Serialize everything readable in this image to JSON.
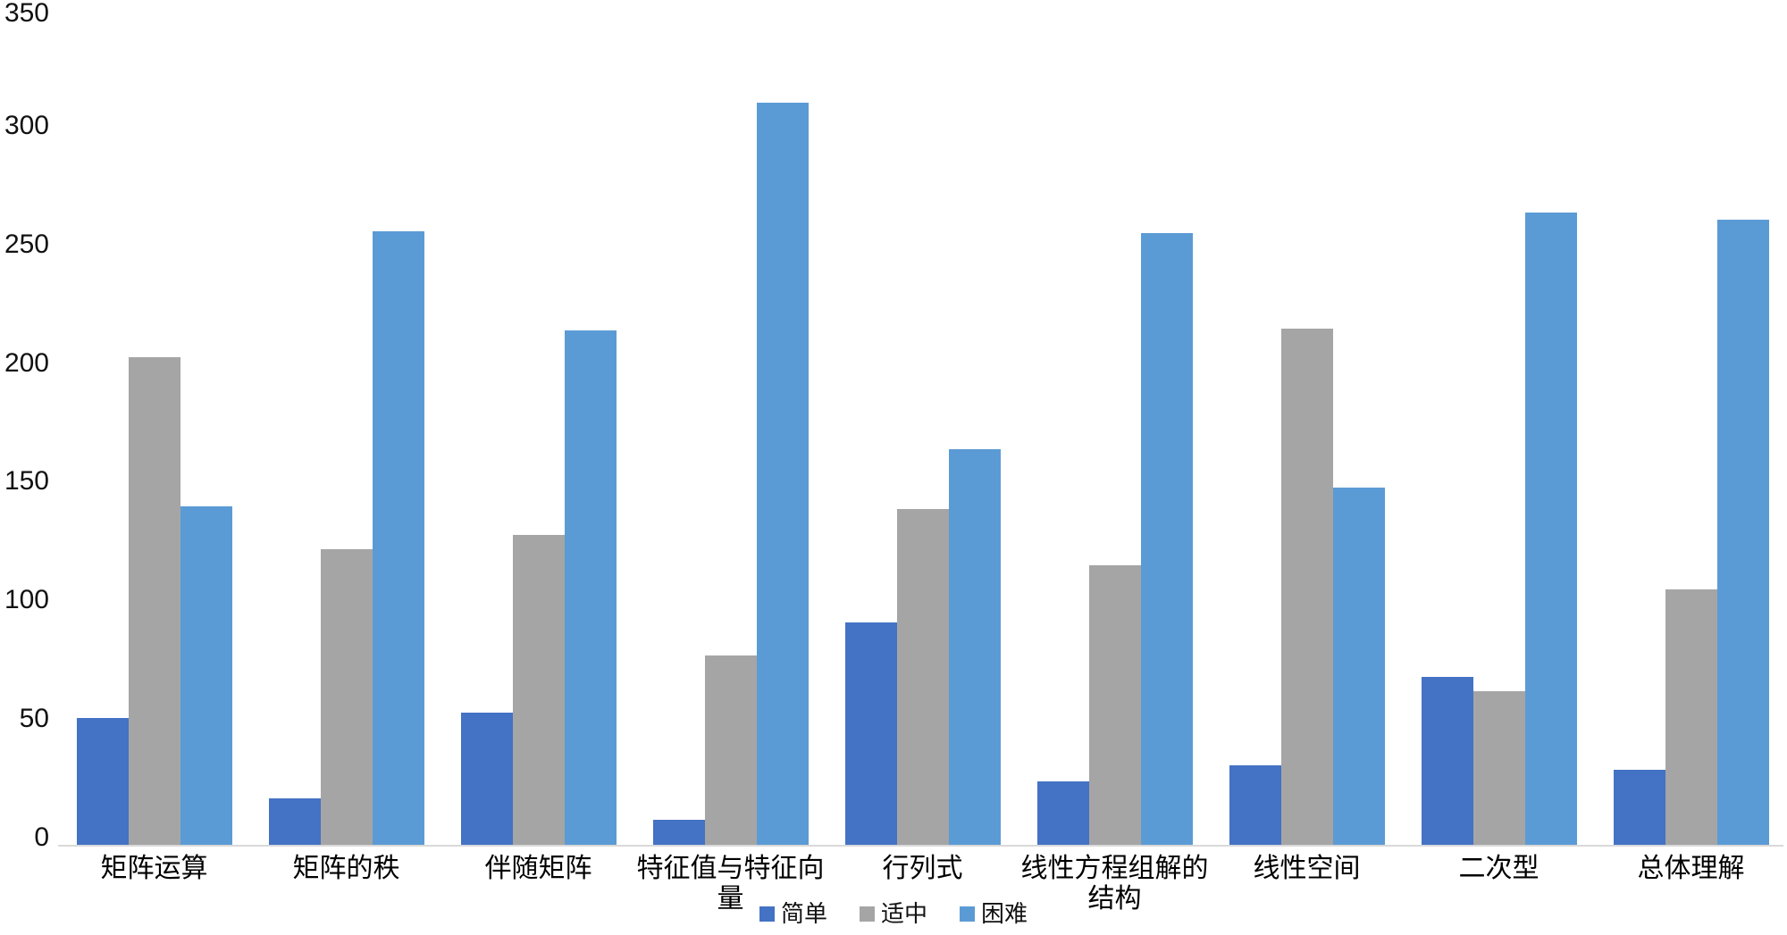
{
  "chart_data": {
    "type": "bar",
    "title": "",
    "categories": [
      "矩阵运算",
      "矩阵的秩",
      "伴随矩阵",
      "特征值与特征向量",
      "行列式",
      "线性方程组解的结构",
      "线性空间",
      "二次型",
      "总体理解"
    ],
    "series": [
      {
        "name": "简单",
        "color": "#4472C4",
        "values": [
          54,
          20,
          56,
          11,
          94,
          27,
          34,
          71,
          32
        ]
      },
      {
        "name": "适中",
        "color": "#A5A5A5",
        "values": [
          206,
          125,
          131,
          80,
          142,
          118,
          218,
          65,
          108
        ]
      },
      {
        "name": "困难",
        "color": "#5B9BD5",
        "values": [
          143,
          259,
          217,
          313,
          167,
          258,
          151,
          267,
          264
        ]
      }
    ],
    "ylim": [
      0,
      350
    ],
    "yticks": [
      0,
      50,
      100,
      150,
      200,
      250,
      300,
      350
    ],
    "xlabel": "",
    "ylabel": "",
    "grid": false,
    "legend_position": "bottom",
    "axis_line_color": "#D9D9D9",
    "background_color": "#FFFFFF"
  }
}
